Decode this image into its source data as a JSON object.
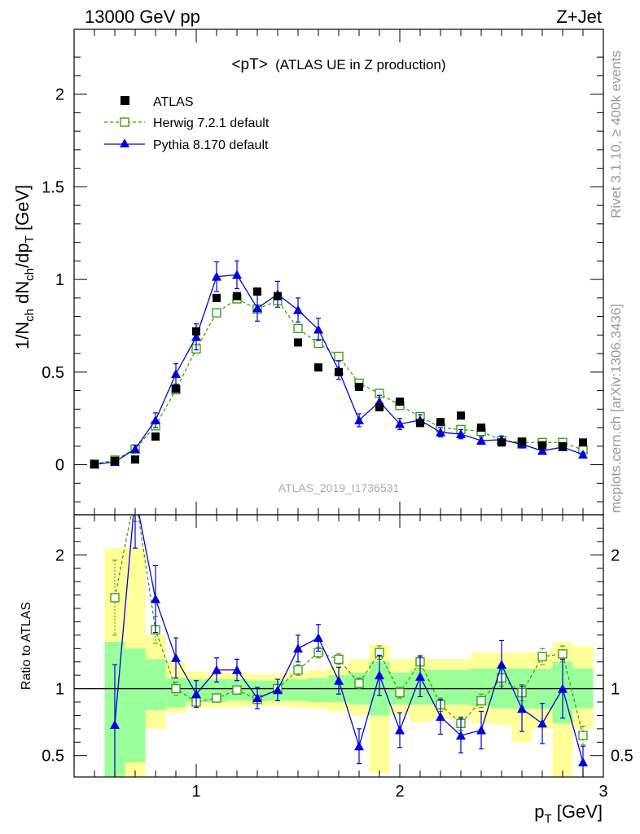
{
  "header": {
    "left": "13000 GeV pp",
    "right": "Z+Jet"
  },
  "side": {
    "rivet": "Rivet 3.1.10, ≥ 400k events",
    "mcplots": "mcplots.cern.ch [arXiv:1306.3436]"
  },
  "chart_data": [
    {
      "type": "scatter",
      "title": "<pT>",
      "subtitle": "(ATLAS UE in Z production)",
      "watermark": "ATLAS_2019_I1736531",
      "ylabel_parts": [
        "1/N",
        "ch",
        " dN",
        "ch",
        "/dp",
        "T",
        " [GeV]"
      ],
      "ylim": [
        -0.27,
        2.35
      ],
      "xlim": [
        0.4,
        3.0
      ],
      "yticks": [
        0,
        0.5,
        1,
        1.5,
        2
      ],
      "ytick_labels": [
        "0",
        "0.5",
        "1",
        "1.5",
        "2"
      ],
      "legend_position": "top-left",
      "x": [
        0.5,
        0.6,
        0.7,
        0.8,
        0.9,
        1.0,
        1.1,
        1.2,
        1.3,
        1.4,
        1.5,
        1.6,
        1.7,
        1.8,
        1.9,
        2.0,
        2.1,
        2.2,
        2.3,
        2.4,
        2.5,
        2.6,
        2.7,
        2.8,
        2.9
      ],
      "series": [
        {
          "name": "ATLAS",
          "color": "#000000",
          "marker": "square",
          "values": [
            0.002,
            0.021,
            0.028,
            0.152,
            0.41,
            0.72,
            0.9,
            0.91,
            0.935,
            0.91,
            0.66,
            0.525,
            0.5,
            0.42,
            0.31,
            0.34,
            0.225,
            0.23,
            0.265,
            0.2,
            0.12,
            0.125,
            0.105,
            0.1,
            0.12
          ]
        },
        {
          "name": "Herwig 7.2.1 default",
          "color": "#339900",
          "marker": "open-square",
          "line": "dashed",
          "values": [
            0.004,
            0.025,
            0.085,
            0.21,
            0.405,
            0.625,
            0.82,
            0.895,
            0.84,
            0.885,
            0.735,
            0.655,
            0.585,
            0.44,
            0.385,
            0.32,
            0.26,
            0.2,
            0.19,
            0.18,
            0.13,
            0.12,
            0.12,
            0.12,
            0.08
          ],
          "errors": [
            0.002,
            0.004,
            0.008,
            0.015,
            0.02,
            0.025,
            0.025,
            0.025,
            0.025,
            0.025,
            0.022,
            0.02,
            0.018,
            0.015,
            0.012,
            0.012,
            0.01,
            0.01,
            0.01,
            0.01,
            0.008,
            0.008,
            0.008,
            0.008,
            0.006
          ]
        },
        {
          "name": "Pythia 8.170 default",
          "color": "#0000dd",
          "marker": "triangle",
          "line": "solid",
          "values": [
            0.002,
            0.015,
            0.085,
            0.24,
            0.49,
            0.69,
            1.015,
            1.025,
            0.845,
            0.92,
            0.835,
            0.73,
            0.51,
            0.24,
            0.34,
            0.22,
            0.24,
            0.175,
            0.165,
            0.13,
            0.135,
            0.11,
            0.075,
            0.095,
            0.055
          ],
          "errors": [
            0.003,
            0.01,
            0.02,
            0.04,
            0.055,
            0.07,
            0.08,
            0.075,
            0.07,
            0.07,
            0.065,
            0.06,
            0.05,
            0.035,
            0.035,
            0.03,
            0.03,
            0.025,
            0.025,
            0.02,
            0.02,
            0.02,
            0.015,
            0.015,
            0.012
          ]
        }
      ]
    },
    {
      "type": "line",
      "ylabel": "Ratio to ATLAS",
      "xlabel": "p",
      "xlabel_sub": "T",
      "xlabel_unit": " [GeV]",
      "ylim": [
        0.34,
        2.3
      ],
      "xlim": [
        0.4,
        3.0
      ],
      "yticks": [
        0.5,
        1,
        2
      ],
      "ytick_labels": [
        "0.5",
        "1",
        "2"
      ],
      "xticks": [
        1,
        2,
        3
      ],
      "xtick_labels": [
        "1",
        "2",
        "3"
      ],
      "reference_line": 1,
      "band_colors": {
        "inner": "#99ff99",
        "outer": "#ffff99"
      },
      "bins": [
        {
          "lo": 0.55,
          "hi": 0.65,
          "inner": [
            0.34,
            1.35
          ],
          "outer": [
            0.34,
            2.05
          ]
        },
        {
          "lo": 0.65,
          "hi": 0.75,
          "inner": [
            0.45,
            1.3
          ],
          "outer": [
            0.34,
            2.05
          ]
        },
        {
          "lo": 0.75,
          "hi": 0.85,
          "inner": [
            0.84,
            1.22
          ],
          "outer": [
            0.7,
            1.4
          ]
        },
        {
          "lo": 0.85,
          "hi": 0.95,
          "inner": [
            0.86,
            1.08
          ],
          "outer": [
            0.82,
            1.2
          ]
        },
        {
          "lo": 0.95,
          "hi": 1.05,
          "inner": [
            0.9,
            1.07
          ],
          "outer": [
            0.86,
            1.13
          ]
        },
        {
          "lo": 1.05,
          "hi": 1.15,
          "inner": [
            0.9,
            1.07
          ],
          "outer": [
            0.86,
            1.12
          ]
        },
        {
          "lo": 1.15,
          "hi": 1.25,
          "inner": [
            0.91,
            1.07
          ],
          "outer": [
            0.86,
            1.12
          ]
        },
        {
          "lo": 1.25,
          "hi": 1.35,
          "inner": [
            0.91,
            1.06
          ],
          "outer": [
            0.87,
            1.11
          ]
        },
        {
          "lo": 1.35,
          "hi": 1.45,
          "inner": [
            0.91,
            1.06
          ],
          "outer": [
            0.87,
            1.11
          ]
        },
        {
          "lo": 1.45,
          "hi": 1.55,
          "inner": [
            0.91,
            1.07
          ],
          "outer": [
            0.86,
            1.12
          ]
        },
        {
          "lo": 1.55,
          "hi": 1.65,
          "inner": [
            0.9,
            1.08
          ],
          "outer": [
            0.85,
            1.14
          ]
        },
        {
          "lo": 1.65,
          "hi": 1.75,
          "inner": [
            0.9,
            1.1
          ],
          "outer": [
            0.83,
            1.17
          ]
        },
        {
          "lo": 1.75,
          "hi": 1.85,
          "inner": [
            0.88,
            1.12
          ],
          "outer": [
            0.8,
            1.22
          ]
        },
        {
          "lo": 1.85,
          "hi": 1.95,
          "inner": [
            0.8,
            1.2
          ],
          "outer": [
            0.37,
            1.33
          ]
        },
        {
          "lo": 1.95,
          "hi": 2.05,
          "inner": [
            0.88,
            1.12
          ],
          "outer": [
            0.8,
            1.22
          ]
        },
        {
          "lo": 2.05,
          "hi": 2.15,
          "inner": [
            0.88,
            1.14
          ],
          "outer": [
            0.75,
            1.22
          ]
        },
        {
          "lo": 2.15,
          "hi": 2.25,
          "inner": [
            0.88,
            1.14
          ],
          "outer": [
            0.78,
            1.22
          ]
        },
        {
          "lo": 2.25,
          "hi": 2.35,
          "inner": [
            0.88,
            1.14
          ],
          "outer": [
            0.78,
            1.22
          ]
        },
        {
          "lo": 2.35,
          "hi": 2.45,
          "inner": [
            0.87,
            1.15
          ],
          "outer": [
            0.74,
            1.27
          ]
        },
        {
          "lo": 2.45,
          "hi": 2.55,
          "inner": [
            0.85,
            1.15
          ],
          "outer": [
            0.73,
            1.27
          ]
        },
        {
          "lo": 2.55,
          "hi": 2.65,
          "inner": [
            0.85,
            1.15
          ],
          "outer": [
            0.6,
            1.27
          ]
        },
        {
          "lo": 2.65,
          "hi": 2.75,
          "inner": [
            0.85,
            1.15
          ],
          "outer": [
            0.7,
            1.27
          ]
        },
        {
          "lo": 2.75,
          "hi": 2.85,
          "inner": [
            0.74,
            1.2
          ],
          "outer": [
            0.34,
            1.35
          ]
        },
        {
          "lo": 2.85,
          "hi": 2.95,
          "inner": [
            0.85,
            1.15
          ],
          "outer": [
            0.7,
            1.32
          ]
        }
      ],
      "x": [
        0.6,
        0.7,
        0.8,
        0.9,
        1.0,
        1.1,
        1.2,
        1.3,
        1.4,
        1.5,
        1.6,
        1.7,
        1.8,
        1.9,
        2.0,
        2.1,
        2.2,
        2.3,
        2.4,
        2.5,
        2.6,
        2.7,
        2.8,
        2.9
      ],
      "series": [
        {
          "name": "Herwig 7.2.1 default",
          "color": "#339900",
          "marker": "open-square",
          "line": "dashed",
          "values": [
            1.68,
            2.45,
            1.44,
            1.0,
            0.9,
            0.93,
            0.99,
            0.92,
            1.0,
            1.14,
            1.27,
            1.22,
            1.04,
            1.27,
            0.97,
            1.2,
            0.88,
            0.74,
            0.91,
            1.08,
            0.97,
            1.24,
            1.26,
            0.65
          ],
          "errors": [
            0.28,
            0.2,
            0.1,
            0.05,
            0.03,
            0.03,
            0.03,
            0.03,
            0.03,
            0.04,
            0.04,
            0.04,
            0.04,
            0.05,
            0.04,
            0.05,
            0.05,
            0.05,
            0.05,
            0.06,
            0.06,
            0.06,
            0.06,
            0.07
          ]
        },
        {
          "name": "Pythia 8.170 default",
          "color": "#0000dd",
          "marker": "triangle",
          "line": "solid",
          "values": [
            0.73,
            2.45,
            1.67,
            1.23,
            0.96,
            1.14,
            1.14,
            0.93,
            0.99,
            1.3,
            1.38,
            1.06,
            0.57,
            1.1,
            0.69,
            1.09,
            0.79,
            0.65,
            0.69,
            1.18,
            0.85,
            0.74,
            1.0,
            0.45
          ],
          "errors": [
            0.45,
            0.4,
            0.25,
            0.15,
            0.1,
            0.09,
            0.08,
            0.08,
            0.08,
            0.1,
            0.1,
            0.1,
            0.13,
            0.15,
            0.13,
            0.15,
            0.13,
            0.13,
            0.14,
            0.18,
            0.17,
            0.15,
            0.22,
            0.12
          ]
        }
      ]
    }
  ]
}
